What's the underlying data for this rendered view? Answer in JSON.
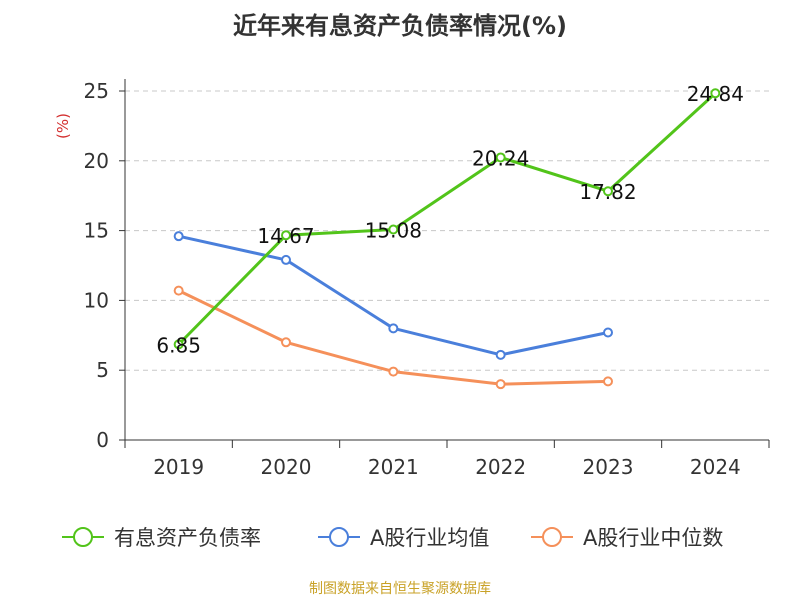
{
  "chart_data": {
    "type": "line",
    "title": "近年来有息资产负债率情况(%)",
    "ylabel": "(%)",
    "categories": [
      "2019",
      "2020",
      "2021",
      "2022",
      "2023",
      "2024"
    ],
    "ylim": [
      0,
      25
    ],
    "yticks": [
      0,
      5,
      10,
      15,
      20,
      25
    ],
    "grid": true,
    "legend_position": "bottom",
    "series": [
      {
        "name": "有息资产负债率",
        "color": "#52c41a",
        "values": [
          6.85,
          14.67,
          15.08,
          20.24,
          17.82,
          24.84
        ],
        "labels": [
          "6.85",
          "14.67",
          "15.08",
          "20.24",
          "17.82",
          "24.84"
        ]
      },
      {
        "name": "A股行业均值",
        "color": "#4a7fdb",
        "values": [
          14.6,
          12.9,
          8.0,
          6.1,
          7.7,
          null
        ]
      },
      {
        "name": "A股行业中位数",
        "color": "#f5905a",
        "values": [
          10.7,
          7.0,
          4.9,
          4.0,
          4.2,
          null
        ]
      }
    ]
  },
  "footer": {
    "source": "制图数据来自恒生聚源数据库"
  }
}
